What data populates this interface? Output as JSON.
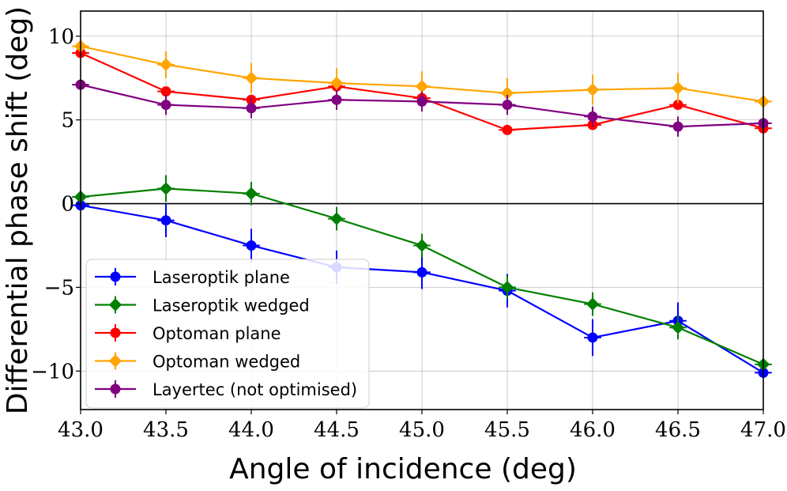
{
  "chart_data": {
    "type": "line",
    "xlabel": "Angle of incidence (deg)",
    "ylabel": "Differential phase shift (deg)",
    "xlim": [
      43.0,
      47.0
    ],
    "ylim": [
      -12.3,
      11.5
    ],
    "xticks": [
      "43.0",
      "43.5",
      "44.0",
      "44.5",
      "45.0",
      "45.5",
      "46.0",
      "46.5",
      "47.0"
    ],
    "yticks": [
      {
        "value": 10,
        "label": "10"
      },
      {
        "value": 5,
        "label": "5"
      },
      {
        "value": 0,
        "label": "0"
      },
      {
        "value": -5,
        "label": "−5"
      },
      {
        "value": -10,
        "label": "−10"
      }
    ],
    "grid": true,
    "zero_line": true,
    "legend_position": "lower-left",
    "x": [
      43.0,
      43.5,
      44.0,
      44.5,
      45.0,
      45.5,
      46.0,
      46.5,
      47.0
    ],
    "xerr": 0.05,
    "series": [
      {
        "name": "Laseroptik plane",
        "color": "#0000ff",
        "marker": "circle",
        "values": [
          -0.1,
          -1.0,
          -2.5,
          -3.8,
          -4.1,
          -5.2,
          -8.0,
          -7.0,
          -10.1
        ],
        "yerr": [
          0.2,
          1.0,
          1.0,
          1.0,
          1.0,
          1.0,
          1.1,
          1.1,
          0.2
        ]
      },
      {
        "name": "Laseroptik wedged",
        "color": "#008000",
        "marker": "diamond",
        "values": [
          0.4,
          0.9,
          0.6,
          -0.9,
          -2.5,
          -5.0,
          -6.0,
          -7.4,
          -9.6
        ],
        "yerr": [
          0.2,
          0.8,
          0.7,
          0.7,
          0.7,
          0.7,
          0.7,
          0.7,
          0.2
        ]
      },
      {
        "name": "Optoman plane",
        "color": "#ff0000",
        "marker": "circle",
        "values": [
          9.0,
          6.7,
          6.2,
          7.0,
          6.3,
          4.4,
          4.7,
          5.9,
          4.5
        ],
        "yerr": [
          0.2,
          0.2,
          0.2,
          0.2,
          0.2,
          0.2,
          0.3,
          0.3,
          0.2
        ]
      },
      {
        "name": "Optoman wedged",
        "color": "#ffa500",
        "marker": "diamond",
        "values": [
          9.4,
          8.3,
          7.5,
          7.2,
          7.0,
          6.6,
          6.8,
          6.9,
          6.1
        ],
        "yerr": [
          0.2,
          0.8,
          0.9,
          0.9,
          0.9,
          0.9,
          0.9,
          0.9,
          0.2
        ]
      },
      {
        "name": "Layertec (not optimised)",
        "color": "#800080",
        "marker": "circle",
        "values": [
          7.1,
          5.9,
          5.7,
          6.2,
          6.1,
          5.9,
          5.2,
          4.6,
          4.8
        ],
        "yerr": [
          0.2,
          0.6,
          0.6,
          0.6,
          0.6,
          0.6,
          0.6,
          0.6,
          0.2
        ]
      }
    ]
  }
}
